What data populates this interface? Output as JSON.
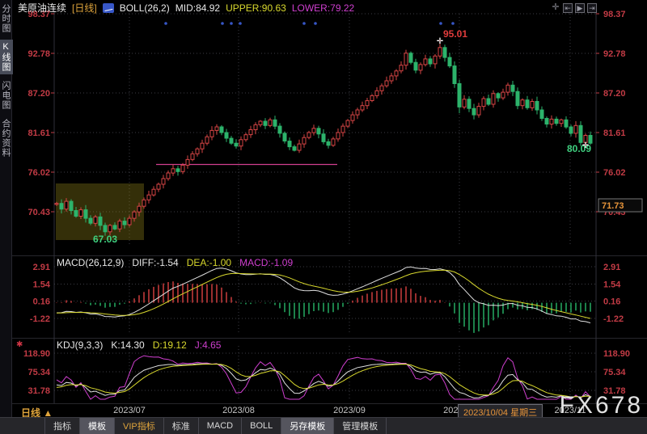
{
  "watermark": "FX678",
  "sidebar": {
    "items": [
      {
        "label": "分时图",
        "active": false
      },
      {
        "label": "K线图",
        "active": true
      },
      {
        "label": "闪电图",
        "active": false
      },
      {
        "label": "合约资料",
        "active": false
      }
    ]
  },
  "header": {
    "symbol": "美原油连续",
    "period": "[日线]",
    "boll_label": "BOLL(26,2)",
    "mid_label": "MID:84.92",
    "upper_label": "UPPER:90.63",
    "lower_label": "LOWER:79.22"
  },
  "top_icons": [
    {
      "name": "crosshair-icon",
      "glyph": "✛"
    },
    {
      "name": "page-start-icon",
      "glyph": "⇤"
    },
    {
      "name": "play-icon",
      "glyph": "▶"
    },
    {
      "name": "page-end-icon",
      "glyph": "⇥"
    }
  ],
  "macd_header": {
    "name": "MACD(26,12,9)",
    "diff": "DIFF:-1.54",
    "dea": "DEA:-1.00",
    "macd": "MACD:-1.09"
  },
  "kdj_header": {
    "name": "KDJ(9,3,3)",
    "k": "K:14.30",
    "d": "D:19.12",
    "j": "J:4.65"
  },
  "axes": {
    "price": [
      "98.37",
      "92.78",
      "87.20",
      "81.61",
      "76.02",
      "70.43"
    ],
    "macd": [
      "2.91",
      "1.54",
      "0.16",
      "-1.22"
    ],
    "kdj": [
      "118.90",
      "75.34",
      "31.78"
    ]
  },
  "annotations": {
    "low": "67.03",
    "high": "95.01",
    "last": "80.09",
    "right_axis_price": "71.73"
  },
  "time_axis": {
    "period_label": "日线 ▲",
    "labels": [
      "2023/07",
      "2023/08",
      "2023/09",
      "2023/10",
      "2023/11"
    ],
    "tooltip": "2023/10/04 星期三"
  },
  "bottom_tabs": [
    {
      "label": "指标",
      "active": false,
      "vip": false
    },
    {
      "label": "模板",
      "active": true,
      "vip": false
    },
    {
      "label": "VIP指标",
      "active": false,
      "vip": true
    },
    {
      "label": "标准",
      "active": false,
      "vip": false
    },
    {
      "label": "MACD",
      "active": false,
      "vip": false
    },
    {
      "label": "BOLL",
      "active": false,
      "vip": false
    },
    {
      "label": "另存模板",
      "active": true,
      "vip": false
    },
    {
      "label": "管理模板",
      "active": false,
      "vip": false
    }
  ],
  "colors": {
    "up": "#d64545",
    "down": "#2cb36b",
    "boll_upper": "#d9d92e",
    "boll_mid": "#e0e0e0",
    "boll_lower": "#cf3fcf",
    "axis_text": "#c23b45",
    "hist_pos": "#c03a3a",
    "hist_neg": "#23a25d",
    "k_line": "#e0e0e0",
    "d_line": "#d9d92e",
    "j_line": "#cf3fcf",
    "grid": "#3c3c44",
    "highlight_box": "rgba(158,142,28,0.33)",
    "trend_line": "#d23f8f",
    "signal_dot": "#3757c8",
    "label_green": "#3fd07f",
    "label_red": "#e03c3c",
    "price_box_text": "#e8953a"
  },
  "chart_data": {
    "type": "candlestick",
    "title": "美原油连续 [日线]",
    "x_axis_labels": [
      "2023/07",
      "2023/08",
      "2023/09",
      "2023/10",
      "2023/11"
    ],
    "panels": [
      {
        "name": "price",
        "indicator": "BOLL(26,2)",
        "values": {
          "MID": 84.92,
          "UPPER": 90.63,
          "LOWER": 79.22
        },
        "y_ticks": [
          98.37,
          92.78,
          87.2,
          81.61,
          76.02,
          70.43
        ],
        "annotations": {
          "lowest": 67.03,
          "highest": 95.01,
          "last_close": 80.09,
          "right_axis_highlight": 71.73
        }
      },
      {
        "name": "macd",
        "indicator": "MACD(26,12,9)",
        "values": {
          "DIFF": -1.54,
          "DEA": -1.0,
          "MACD": -1.09
        },
        "y_ticks": [
          2.91,
          1.54,
          0.16,
          -1.22
        ]
      },
      {
        "name": "kdj",
        "indicator": "KDJ(9,3,3)",
        "values": {
          "K": 14.3,
          "D": 19.12,
          "J": 4.65
        },
        "y_ticks": [
          118.9,
          75.34,
          31.78
        ]
      }
    ],
    "first_open": 72.0,
    "warmup_closes": [
      74.5,
      75.2,
      73.8,
      72.9,
      74.1,
      75.0,
      73.5,
      72.2,
      71.0,
      70.2,
      69.5,
      70.8,
      72.0,
      73.2,
      72.5,
      71.3,
      70.1,
      69.3,
      70.5,
      71.6
    ],
    "closes": [
      71.6,
      70.8,
      71.9,
      70.6,
      69.8,
      70.7,
      69.5,
      68.8,
      69.7,
      68.5,
      67.6,
      68.5,
      68.0,
      69.1,
      68.6,
      69.5,
      70.4,
      71.2,
      72.1,
      72.8,
      73.6,
      74.3,
      75.1,
      75.9,
      76.5,
      76.1,
      77.0,
      77.8,
      78.6,
      79.3,
      80.1,
      81.0,
      81.9,
      82.4,
      81.6,
      80.8,
      80.1,
      79.7,
      80.6,
      81.3,
      82.0,
      82.7,
      83.2,
      82.6,
      83.4,
      82.5,
      81.5,
      80.4,
      79.6,
      79.1,
      80.0,
      80.9,
      81.6,
      82.2,
      81.4,
      80.3,
      79.8,
      80.7,
      81.6,
      82.5,
      83.3,
      84.1,
      84.8,
      85.4,
      86.1,
      86.8,
      87.5,
      88.2,
      88.9,
      89.6,
      90.3,
      91.1,
      92.8,
      91.5,
      90.4,
      91.2,
      92.0,
      91.3,
      92.4,
      93.6,
      92.2,
      91.0,
      88.5,
      85.2,
      86.3,
      85.0,
      84.1,
      85.3,
      86.4,
      85.6,
      87.1,
      86.5,
      87.3,
      88.3,
      87.4,
      85.4,
      86.2,
      85.1,
      86.0,
      84.8,
      83.6,
      82.8,
      83.5,
      82.9,
      83.4,
      82.4,
      81.5,
      82.6,
      80.2,
      81.2,
      80.09
    ],
    "overrides": {
      "low_index": 10,
      "low_value": 67.03,
      "high_index": 79,
      "high_value": 95.01
    },
    "signal_dot_x": [
      205,
      275,
      286,
      297,
      376,
      390,
      545,
      560
    ],
    "trend_line": {
      "y_price": 77.1,
      "x_from": 193,
      "x_to": 417
    },
    "highlight_box": {
      "x": 69,
      "y": 227,
      "w": 109,
      "h": 70
    }
  }
}
